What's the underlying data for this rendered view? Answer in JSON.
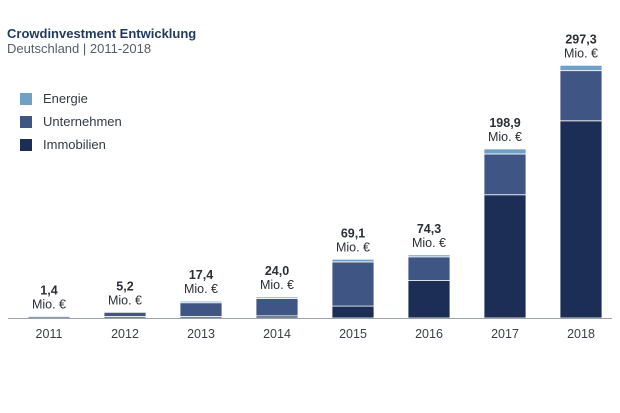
{
  "chart_data": {
    "type": "bar",
    "stacked": true,
    "title": "Crowdinvestment Entwicklung",
    "subtitle": "Deutschland | 2011-2018",
    "categories": [
      "2011",
      "2012",
      "2013",
      "2014",
      "2015",
      "2016",
      "2017",
      "2018"
    ],
    "series": [
      {
        "name": "Immobilien",
        "values": [
          0.0,
          0.3,
          1.0,
          2.5,
          14.0,
          44.0,
          145.0,
          232.0
        ]
      },
      {
        "name": "Unternehmen",
        "values": [
          1.4,
          4.9,
          16.2,
          20.5,
          52.0,
          28.0,
          48.0,
          59.0
        ]
      },
      {
        "name": "Energie",
        "values": [
          0.0,
          0.0,
          0.2,
          1.0,
          3.1,
          2.3,
          5.9,
          6.3
        ]
      }
    ],
    "totals": [
      "1,4",
      "5,2",
      "17,4",
      "24,0",
      "69,1",
      "74,3",
      "198,9",
      "297,3"
    ],
    "unit_label": "Mio. €",
    "legend_order": [
      "Energie",
      "Unternehmen",
      "Immobilien"
    ],
    "legend_position": "top-left",
    "ylim": [
      0,
      310
    ],
    "yaxis_visible": false,
    "grid": false,
    "colors": {
      "Immobilien": "#1c2e55",
      "Unternehmen": "#3f5685",
      "Energie": "#6fa1c7",
      "baseline": "#9aa3ad"
    }
  }
}
